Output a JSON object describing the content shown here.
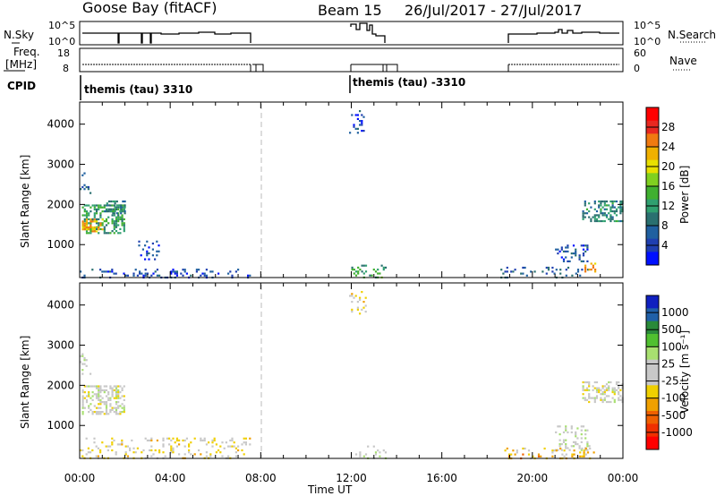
{
  "header": {
    "station": "Goose Bay (fitACF)",
    "beam": "Beam 15",
    "dates": "26/Jul/2017 - 27/Jul/2017"
  },
  "panels": {
    "nsky_label": "N.Sky",
    "nsky_ticks": [
      "10^5",
      "10^0"
    ],
    "nsearch_label": "N.Search",
    "nsearch_ticks": [
      "10^5",
      "10^0"
    ],
    "freq_label_line1": "Freq.",
    "freq_label_line2": "[MHz]",
    "freq_ticks": [
      "18",
      "8"
    ],
    "nave_label": "Nave",
    "nave_ticks": [
      "60",
      "0"
    ],
    "cpid_label": "CPID",
    "cpid_1": "themis (tau) 3310",
    "cpid_2": "themis (tau) -3310"
  },
  "axes": {
    "ylabel": "Slant Range [km]",
    "yticks": [
      "4000",
      "3000",
      "2000",
      "1000"
    ],
    "xlabel": "Time UT",
    "xticks": [
      "00:00",
      "04:00",
      "08:00",
      "12:00",
      "16:00",
      "20:00",
      "00:00"
    ]
  },
  "colorbars": {
    "power": {
      "label": "Power [dB]",
      "ticks": [
        "28",
        "24",
        "20",
        "16",
        "12",
        "8",
        "4"
      ],
      "colors": [
        "#ff0000",
        "#e82820",
        "#f07a10",
        "#f0b000",
        "#e8e000",
        "#80d020",
        "#40b030",
        "#30a070",
        "#2a7070",
        "#2060a0",
        "#1f3fb0",
        "#0010ff"
      ]
    },
    "velocity": {
      "label": "Velocity [m s⁻¹]",
      "ticks": [
        "1000",
        "500",
        "100",
        "25",
        "-25",
        "-100",
        "-500",
        "-1000"
      ],
      "colors": [
        "#1020c0",
        "#2060a8",
        "#2a8a3a",
        "#50c030",
        "#a8e070",
        "#c8c8c8",
        "#c8c8c8",
        "#f0d000",
        "#f0a000",
        "#f06000",
        "#f03000",
        "#ff0000"
      ]
    }
  },
  "chart_data": [
    {
      "type": "heatmap",
      "title": "Power",
      "x_label": "Time UT",
      "y_label": "Slant Range [km]",
      "x_range_hours": [
        0,
        24
      ],
      "y_range_km": [
        180,
        4550
      ],
      "value_label": "Power [dB]",
      "value_range": [
        0,
        31
      ],
      "clusters": [
        {
          "t": [
            0.1,
            2.0
          ],
          "r": [
            1300,
            2000
          ],
          "v": 12,
          "density": 0.9
        },
        {
          "t": [
            0.1,
            1.0
          ],
          "r": [
            1350,
            1650
          ],
          "v": 22,
          "density": 0.9
        },
        {
          "t": [
            0.0,
            0.5
          ],
          "r": [
            2300,
            2800
          ],
          "v": 6,
          "density": 0.3
        },
        {
          "t": [
            1.0,
            2.0
          ],
          "r": [
            1800,
            2100
          ],
          "v": 10,
          "density": 0.6
        },
        {
          "t": [
            2.5,
            3.5
          ],
          "r": [
            600,
            1100
          ],
          "v": 5,
          "density": 0.35
        },
        {
          "t": [
            0.0,
            7.5
          ],
          "r": [
            200,
            400
          ],
          "v": 5,
          "density": 0.35
        },
        {
          "t": [
            11.9,
            12.6
          ],
          "r": [
            3800,
            4350
          ],
          "v": 5,
          "density": 0.3
        },
        {
          "t": [
            12.0,
            13.5
          ],
          "r": [
            200,
            500
          ],
          "v": 12,
          "density": 0.3
        },
        {
          "t": [
            22.2,
            24.0
          ],
          "r": [
            1600,
            2100
          ],
          "v": 10,
          "density": 0.8
        },
        {
          "t": [
            21.0,
            22.5
          ],
          "r": [
            600,
            1000
          ],
          "v": 5,
          "density": 0.4
        },
        {
          "t": [
            18.5,
            22.5
          ],
          "r": [
            200,
            450
          ],
          "v": 6,
          "density": 0.3
        },
        {
          "t": [
            22.3,
            22.8
          ],
          "r": [
            350,
            550
          ],
          "v": 22,
          "density": 0.8
        }
      ]
    },
    {
      "type": "heatmap",
      "title": "Velocity",
      "x_label": "Time UT",
      "y_label": "Slant Range [km]",
      "x_range_hours": [
        0,
        24
      ],
      "y_range_km": [
        180,
        4550
      ],
      "value_label": "Velocity [m s-1]",
      "value_range": [
        -1000,
        1000
      ],
      "clusters": [
        {
          "t": [
            0.1,
            2.0
          ],
          "r": [
            1300,
            2000
          ],
          "v": 0,
          "density": 0.9
        },
        {
          "t": [
            0.0,
            0.5
          ],
          "r": [
            2300,
            2800
          ],
          "v": 0,
          "density": 0.3
        },
        {
          "t": [
            0.0,
            7.5
          ],
          "r": [
            200,
            700
          ],
          "v": -150,
          "density": 0.3
        },
        {
          "t": [
            11.9,
            12.6
          ],
          "r": [
            3800,
            4350
          ],
          "v": -200,
          "density": 0.3
        },
        {
          "t": [
            12.0,
            13.5
          ],
          "r": [
            200,
            500
          ],
          "v": 50,
          "density": 0.3
        },
        {
          "t": [
            22.2,
            24.0
          ],
          "r": [
            1600,
            2100
          ],
          "v": 0,
          "density": 0.8
        },
        {
          "t": [
            21.0,
            22.5
          ],
          "r": [
            400,
            1000
          ],
          "v": 60,
          "density": 0.4
        },
        {
          "t": [
            18.5,
            23.0
          ],
          "r": [
            200,
            450
          ],
          "v": -300,
          "density": 0.3
        }
      ]
    }
  ]
}
